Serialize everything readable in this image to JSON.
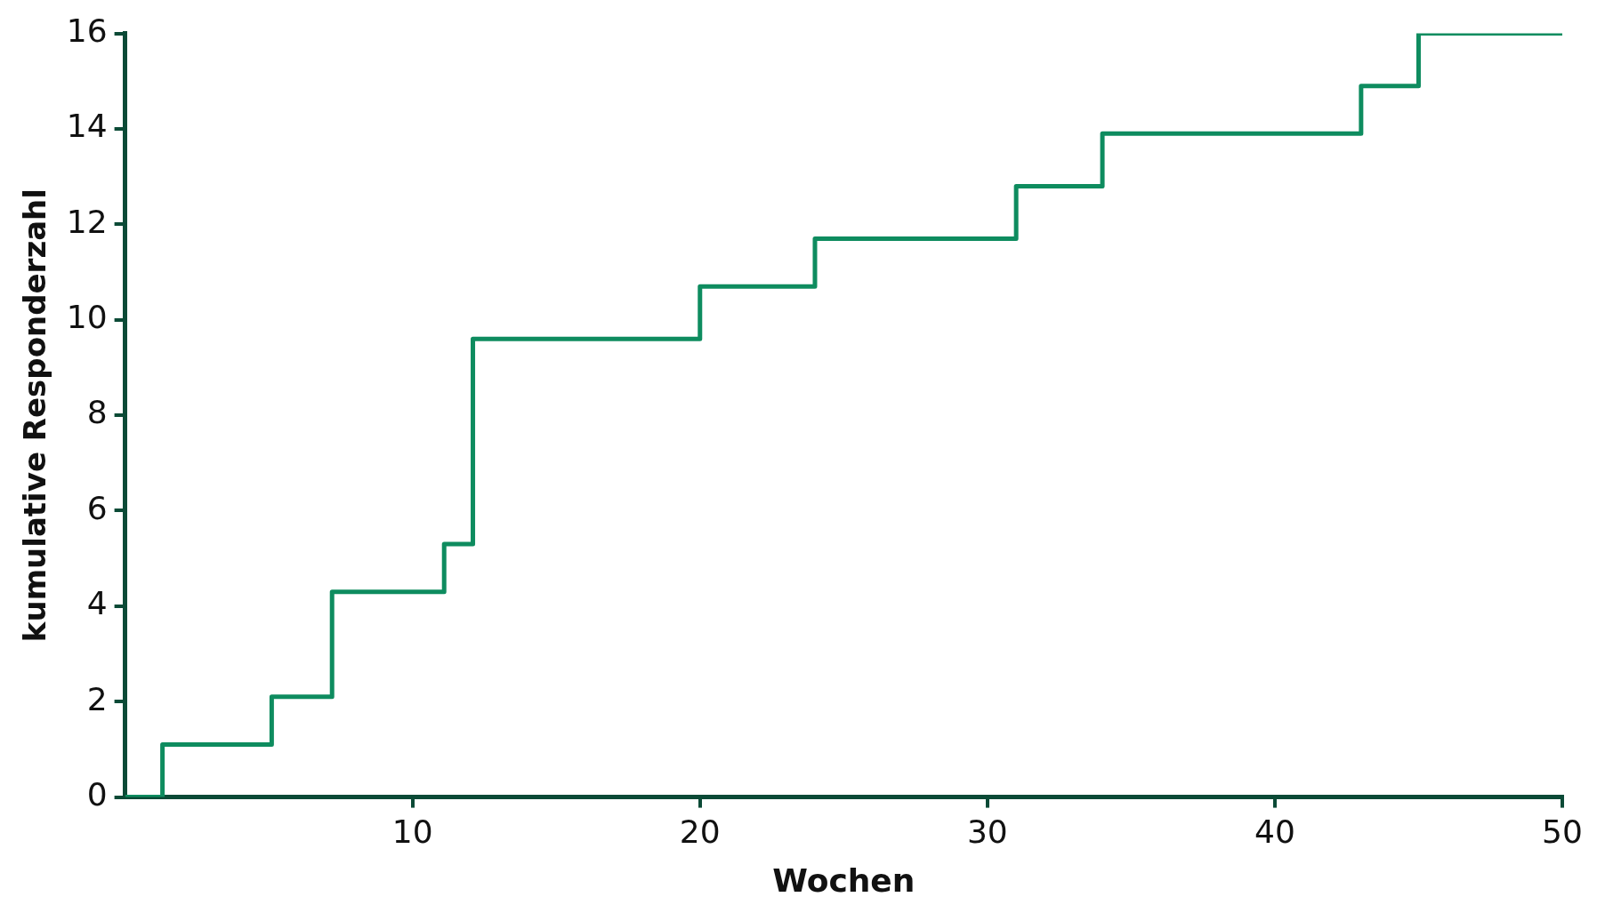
{
  "chart_data": {
    "type": "step",
    "xlabel": "Wochen",
    "ylabel": "kumulative Responderzahl",
    "x": [
      0,
      1.3,
      5.1,
      7.2,
      11.1,
      12.1,
      20,
      24,
      31,
      34,
      43,
      45,
      50
    ],
    "series": [
      {
        "color": "#0e8c5f",
        "values": [
          0,
          1.1,
          2.1,
          4.3,
          5.3,
          9.6,
          10.7,
          11.7,
          12.8,
          13.9,
          14.9,
          16,
          16
        ]
      }
    ],
    "xlim": [
      0,
      50
    ],
    "xticks": [
      10,
      20,
      30,
      40,
      50
    ],
    "ylim": [
      0,
      16
    ],
    "yticks": [
      0,
      2,
      4,
      6,
      8,
      10,
      12,
      14,
      16
    ],
    "grid": false,
    "legend": false,
    "marker": "none",
    "line_style": "solid"
  }
}
